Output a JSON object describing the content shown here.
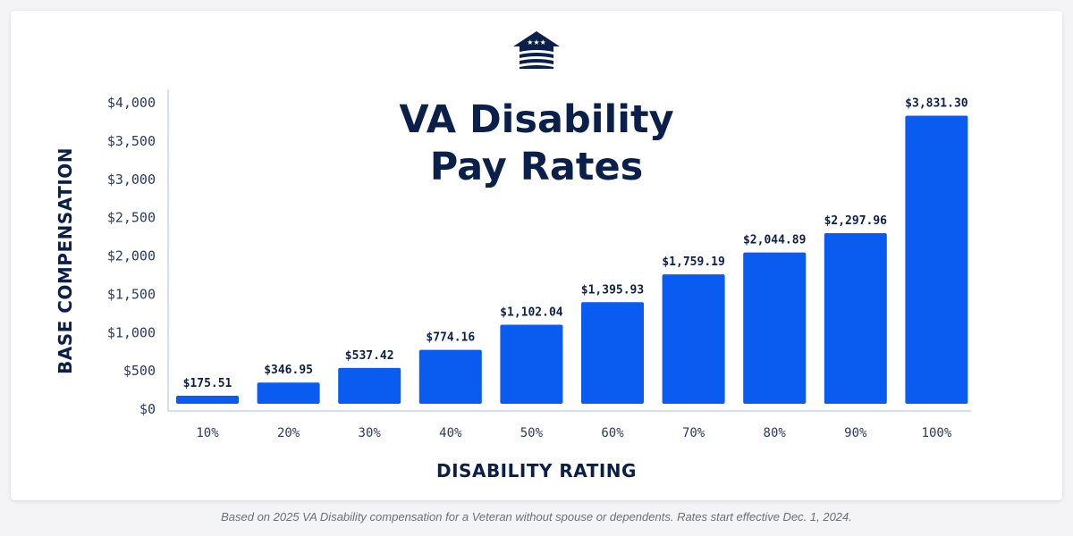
{
  "colors": {
    "bar": "#0a5cf0",
    "navy": "#0b1f4b",
    "axis_text": "#2a3a5e",
    "axis_line": "#cfe0f7"
  },
  "logo": {
    "icon": "house-flag-logo-icon"
  },
  "footnote": "Based on 2025 VA Disability compensation for a Veteran without spouse or dependents. Rates start effective Dec. 1, 2024.",
  "chart_data": {
    "type": "bar",
    "title_lines": [
      "VA Disability",
      "Pay Rates"
    ],
    "xlabel": "DISABILITY RATING",
    "ylabel": "BASE COMPENSATION",
    "categories": [
      "10%",
      "20%",
      "30%",
      "40%",
      "50%",
      "60%",
      "70%",
      "80%",
      "90%",
      "100%"
    ],
    "values": [
      175.51,
      346.95,
      537.42,
      774.16,
      1102.04,
      1395.93,
      1759.19,
      2044.89,
      2297.96,
      3831.3
    ],
    "value_labels": [
      "$175.51",
      "$346.95",
      "$537.42",
      "$774.16",
      "$1,102.04",
      "$1,395.93",
      "$1,759.19",
      "$2,044.89",
      "$2,297.96",
      "$3,831.30"
    ],
    "ylim": [
      0,
      4000
    ],
    "yticks": [
      0,
      500,
      1000,
      1500,
      2000,
      2500,
      3000,
      3500,
      4000
    ],
    "ytick_labels": [
      "$0",
      "$500",
      "$1,000",
      "$1,500",
      "$2,000",
      "$2,500",
      "$3,000",
      "$3,500",
      "$4,000"
    ],
    "grid": false,
    "legend": "none"
  }
}
